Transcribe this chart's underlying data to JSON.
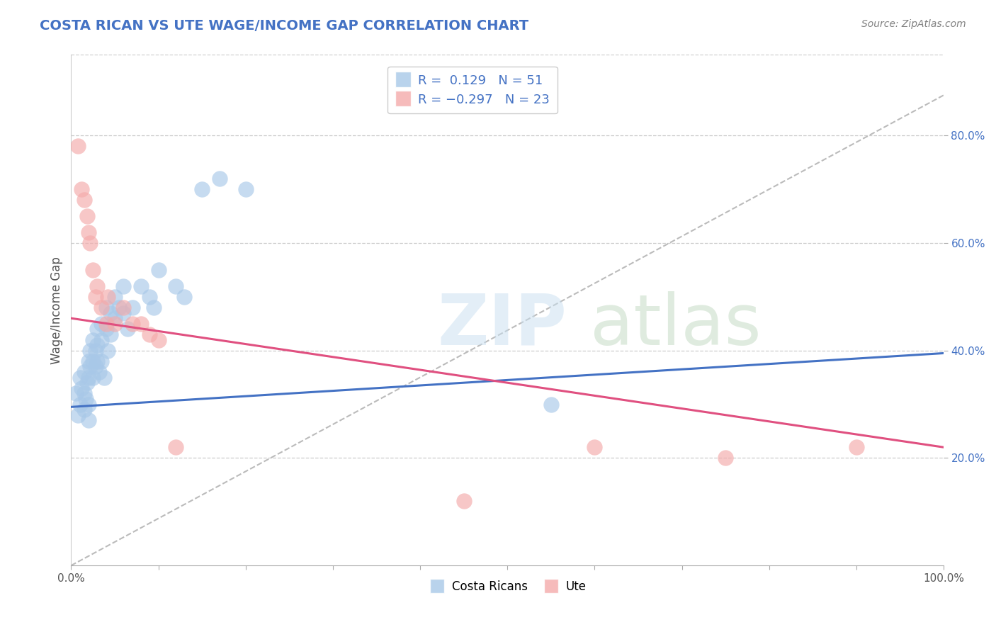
{
  "title": "COSTA RICAN VS UTE WAGE/INCOME GAP CORRELATION CHART",
  "source": "Source: ZipAtlas.com",
  "ylabel": "Wage/Income Gap",
  "xlim": [
    0,
    1
  ],
  "ylim": [
    0.0,
    0.95
  ],
  "xtick_positions": [
    0.0,
    0.1,
    0.2,
    0.3,
    0.4,
    0.5,
    0.6,
    0.7,
    0.8,
    0.9,
    1.0
  ],
  "xtick_labels_shown": {
    "0.0": "0.0%",
    "1.0": "100.0%"
  },
  "yticks": [
    0.2,
    0.4,
    0.6,
    0.8
  ],
  "ytick_labels": [
    "20.0%",
    "40.0%",
    "60.0%",
    "80.0%"
  ],
  "legend_label1": "Costa Ricans",
  "legend_label2": "Ute",
  "blue_color": "#a8c8e8",
  "pink_color": "#f4aaaa",
  "blue_line_color": "#4472c4",
  "pink_line_color": "#e05080",
  "title_color": "#4472c4",
  "source_color": "#808080",
  "blue_dots_x": [
    0.005,
    0.008,
    0.01,
    0.01,
    0.012,
    0.015,
    0.015,
    0.015,
    0.017,
    0.018,
    0.02,
    0.02,
    0.02,
    0.02,
    0.022,
    0.022,
    0.025,
    0.025,
    0.025,
    0.028,
    0.028,
    0.03,
    0.03,
    0.03,
    0.032,
    0.035,
    0.035,
    0.035,
    0.038,
    0.04,
    0.04,
    0.042,
    0.045,
    0.045,
    0.05,
    0.05,
    0.055,
    0.06,
    0.06,
    0.065,
    0.07,
    0.08,
    0.09,
    0.095,
    0.1,
    0.12,
    0.13,
    0.15,
    0.17,
    0.2,
    0.55
  ],
  "blue_dots_y": [
    0.32,
    0.28,
    0.35,
    0.3,
    0.33,
    0.36,
    0.32,
    0.29,
    0.31,
    0.34,
    0.38,
    0.35,
    0.3,
    0.27,
    0.4,
    0.37,
    0.42,
    0.38,
    0.35,
    0.4,
    0.37,
    0.44,
    0.41,
    0.38,
    0.36,
    0.45,
    0.42,
    0.38,
    0.35,
    0.48,
    0.44,
    0.4,
    0.47,
    0.43,
    0.5,
    0.46,
    0.48,
    0.52,
    0.47,
    0.44,
    0.48,
    0.52,
    0.5,
    0.48,
    0.55,
    0.52,
    0.5,
    0.7,
    0.72,
    0.7,
    0.3
  ],
  "pink_dots_x": [
    0.008,
    0.012,
    0.015,
    0.018,
    0.02,
    0.022,
    0.025,
    0.028,
    0.03,
    0.035,
    0.04,
    0.042,
    0.05,
    0.06,
    0.07,
    0.08,
    0.09,
    0.1,
    0.12,
    0.45,
    0.6,
    0.75,
    0.9
  ],
  "pink_dots_y": [
    0.78,
    0.7,
    0.68,
    0.65,
    0.62,
    0.6,
    0.55,
    0.5,
    0.52,
    0.48,
    0.45,
    0.5,
    0.45,
    0.48,
    0.45,
    0.45,
    0.43,
    0.42,
    0.22,
    0.12,
    0.22,
    0.2,
    0.22
  ],
  "blue_line_x": [
    0.0,
    1.0
  ],
  "blue_line_y": [
    0.295,
    0.395
  ],
  "pink_line_x": [
    0.0,
    1.0
  ],
  "pink_line_y": [
    0.46,
    0.22
  ],
  "ref_line_x": [
    0.0,
    1.0
  ],
  "ref_line_y": [
    0.0,
    0.875
  ]
}
